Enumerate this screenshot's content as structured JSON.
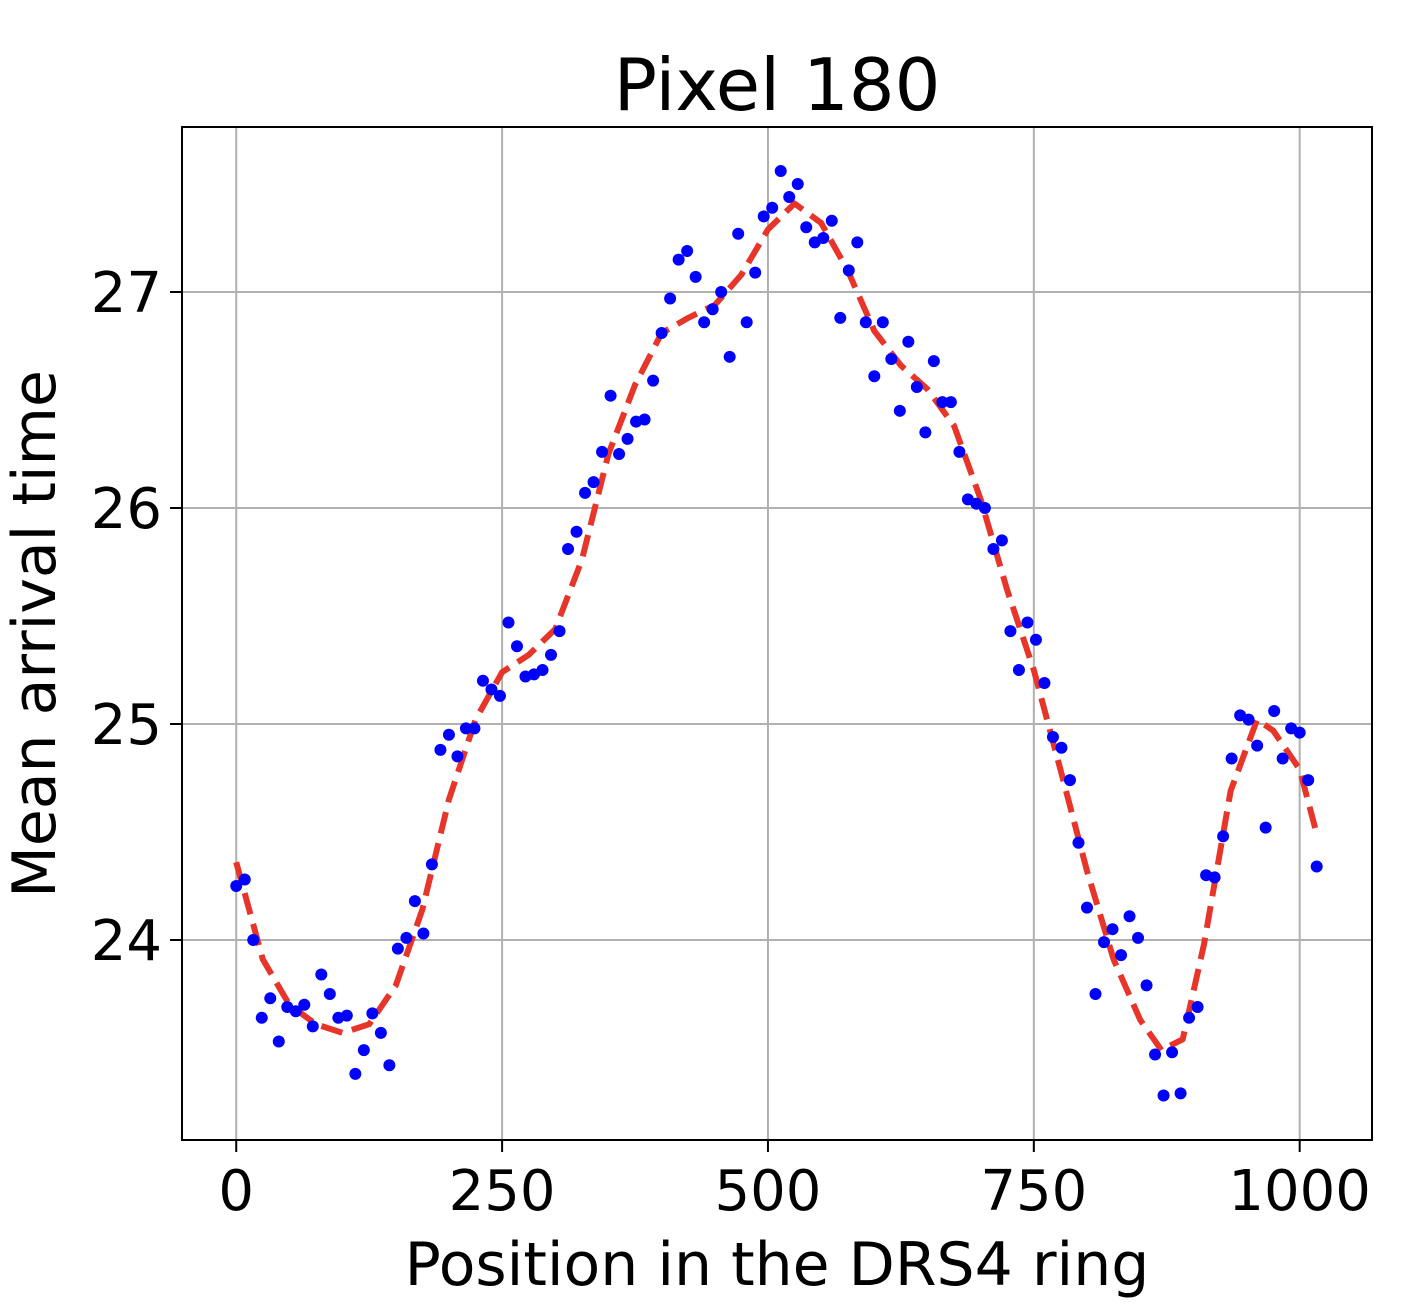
{
  "chart_data": {
    "type": "scatter",
    "title": "Pixel 180",
    "xlabel": "Position in the DRS4 ring",
    "ylabel": "Mean arrival time",
    "xlim": [
      -51,
      1068
    ],
    "ylim": [
      23.074,
      27.764
    ],
    "xticks": [
      0,
      250,
      500,
      750,
      1000
    ],
    "xtick_labels": [
      "0",
      "250",
      "500",
      "750",
      "1000"
    ],
    "yticks": [
      24,
      25,
      26,
      27
    ],
    "ytick_labels": [
      "24",
      "25",
      "26",
      "27"
    ],
    "grid": true,
    "colors": {
      "points": "#0000ff",
      "fit": "#e8352a",
      "grid": "#b0b0b0"
    },
    "series": [
      {
        "name": "mean arrival time",
        "style": "points",
        "x_start": 0,
        "x_step": 8,
        "y": [
          24.25,
          24.28,
          24.0,
          23.64,
          23.73,
          23.53,
          23.69,
          23.67,
          23.7,
          23.6,
          23.84,
          23.75,
          23.64,
          23.65,
          23.38,
          23.49,
          23.66,
          23.57,
          23.42,
          23.96,
          24.01,
          24.18,
          24.03,
          24.35,
          24.88,
          24.95,
          24.85,
          24.98,
          24.98,
          25.2,
          25.16,
          25.13,
          25.47,
          25.36,
          25.22,
          25.23,
          25.25,
          25.32,
          25.43,
          25.81,
          25.89,
          26.07,
          26.12,
          26.26,
          26.52,
          26.25,
          26.32,
          26.4,
          26.41,
          26.59,
          26.81,
          26.97,
          27.15,
          27.19,
          27.07,
          26.86,
          26.92,
          27.0,
          26.7,
          27.27,
          26.86,
          27.09,
          27.35,
          27.39,
          27.56,
          27.44,
          27.5,
          27.3,
          27.23,
          27.25,
          27.33,
          26.88,
          27.1,
          27.23,
          26.86,
          26.61,
          26.86,
          26.69,
          26.45,
          26.77,
          26.56,
          26.35,
          26.68,
          26.49,
          26.49,
          26.26,
          26.04,
          26.02,
          26.0,
          25.81,
          25.85,
          25.43,
          25.25,
          25.47,
          25.39,
          25.19,
          24.94,
          24.89,
          24.74,
          24.45,
          24.15,
          23.75,
          23.99,
          24.05,
          23.93,
          24.11,
          24.01,
          23.79,
          23.47,
          23.28,
          23.48,
          23.29,
          23.64,
          23.69,
          24.3,
          24.29,
          24.48,
          24.84,
          25.04,
          25.02,
          24.9,
          24.52,
          25.06,
          24.84,
          24.98,
          24.96,
          24.74,
          24.34
        ]
      },
      {
        "name": "fit",
        "style": "dashed-line",
        "x": [
          0,
          25,
          50,
          75,
          100,
          125,
          150,
          175,
          200,
          225,
          250,
          275,
          300,
          325,
          350,
          375,
          400,
          425,
          450,
          475,
          500,
          525,
          550,
          575,
          600,
          625,
          650,
          675,
          700,
          725,
          750,
          775,
          800,
          825,
          850,
          870,
          890,
          910,
          935,
          960,
          975,
          1000,
          1015
        ],
        "y": [
          24.36,
          23.91,
          23.7,
          23.61,
          23.57,
          23.61,
          23.79,
          24.14,
          24.65,
          25.02,
          25.24,
          25.32,
          25.44,
          25.76,
          26.25,
          26.57,
          26.81,
          26.88,
          26.94,
          27.08,
          27.29,
          27.41,
          27.32,
          27.1,
          26.82,
          26.66,
          26.55,
          26.38,
          26.04,
          25.62,
          25.25,
          24.79,
          24.32,
          23.91,
          23.63,
          23.49,
          23.54,
          23.98,
          24.69,
          25.02,
          24.97,
          24.79,
          24.51
        ]
      }
    ]
  }
}
